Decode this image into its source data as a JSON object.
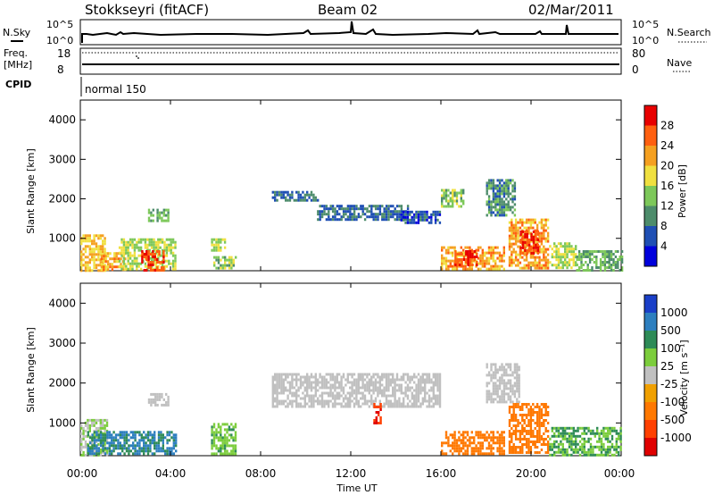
{
  "header": {
    "station": "Stokkseyri (fitACF)",
    "beam": "Beam 02",
    "date": "02/Mar/2011"
  },
  "strip_labels": {
    "nsky": "N.Sky",
    "nsearch": "N.Search",
    "freq_line1": "Freq.",
    "freq_line2": "[MHz]",
    "nave": "Nave",
    "cpid": "CPID",
    "cpid_value": "normal 150"
  },
  "noise_ticks_left": [
    "10^5",
    "10^0"
  ],
  "noise_ticks_right": [
    "10^5",
    "10^0"
  ],
  "freq_ticks": [
    "18",
    "8"
  ],
  "nave_ticks": [
    "80",
    "0"
  ],
  "x_axis": {
    "label": "Time UT",
    "ticks": [
      "00:00",
      "04:00",
      "08:00",
      "12:00",
      "16:00",
      "20:00",
      "00:00"
    ]
  },
  "y_axis": {
    "label": "Slant Range [km]",
    "ticks": [
      "1000",
      "2000",
      "3000",
      "4000"
    ]
  },
  "power_scale": {
    "label": "Power [dB]",
    "ticks": [
      "4",
      "8",
      "12",
      "16",
      "20",
      "24",
      "28"
    ],
    "colors": [
      "#0000dc",
      "#1f4fb4",
      "#4d8c6b",
      "#7dc85a",
      "#f0e040",
      "#f5a020",
      "#ff6010",
      "#e80000"
    ]
  },
  "velocity_scale": {
    "label": "Velocity [m s⁻¹]",
    "ticks": [
      "1000",
      "500",
      "100",
      "25",
      "-25",
      "-100",
      "-500",
      "-1000"
    ],
    "colors": [
      "#1a3fc8",
      "#2d7fbf",
      "#2e8b57",
      "#7ccd3c",
      "#c0c0c0",
      "#f0a000",
      "#ff7800",
      "#ff4000",
      "#e00000"
    ]
  },
  "chart_data": [
    {
      "type": "heatmap",
      "title": "",
      "xlabel": "Time UT",
      "ylabel": "Slant Range [km]",
      "zlabel": "Power [dB]",
      "xlim": [
        0,
        24
      ],
      "ylim": [
        180,
        4500
      ],
      "zlim": [
        0,
        32
      ],
      "regions": [
        {
          "t0": 0.0,
          "t1": 1.1,
          "r0": 200,
          "r1": 1100,
          "level": 20
        },
        {
          "t0": 0.9,
          "t1": 2.0,
          "r0": 200,
          "r1": 650,
          "level": 22
        },
        {
          "t0": 1.7,
          "t1": 4.2,
          "r0": 200,
          "r1": 1000,
          "level": 16
        },
        {
          "t0": 2.7,
          "t1": 3.7,
          "r0": 200,
          "r1": 700,
          "level": 28
        },
        {
          "t0": 3.0,
          "t1": 3.9,
          "r0": 1450,
          "r1": 1750,
          "level": 12
        },
        {
          "t0": 5.8,
          "t1": 6.4,
          "r0": 700,
          "r1": 1000,
          "level": 16
        },
        {
          "t0": 5.9,
          "t1": 6.9,
          "r0": 250,
          "r1": 550,
          "level": 14
        },
        {
          "t0": 8.5,
          "t1": 10.5,
          "r0": 1950,
          "r1": 2200,
          "level": 8
        },
        {
          "t0": 10.5,
          "t1": 14.5,
          "r0": 1500,
          "r1": 1850,
          "level": 8
        },
        {
          "t0": 14.2,
          "t1": 16.0,
          "r0": 1400,
          "r1": 1700,
          "level": 6
        },
        {
          "t0": 16.0,
          "t1": 17.0,
          "r0": 1800,
          "r1": 2250,
          "level": 14
        },
        {
          "t0": 16.0,
          "t1": 18.8,
          "r0": 250,
          "r1": 800,
          "level": 22
        },
        {
          "t0": 16.6,
          "t1": 17.6,
          "r0": 300,
          "r1": 700,
          "level": 28
        },
        {
          "t0": 18.0,
          "t1": 19.3,
          "r0": 1600,
          "r1": 2500,
          "level": 10
        },
        {
          "t0": 19.0,
          "t1": 20.8,
          "r0": 250,
          "r1": 1500,
          "level": 22
        },
        {
          "t0": 19.5,
          "t1": 20.3,
          "r0": 600,
          "r1": 1200,
          "level": 28
        },
        {
          "t0": 20.8,
          "t1": 22.0,
          "r0": 250,
          "r1": 900,
          "level": 16
        },
        {
          "t0": 22.0,
          "t1": 24.0,
          "r0": 200,
          "r1": 700,
          "level": 12
        }
      ]
    },
    {
      "type": "heatmap",
      "title": "",
      "xlabel": "Time UT",
      "ylabel": "Slant Range [km]",
      "zlabel": "Velocity [m s⁻¹]",
      "xlim": [
        0,
        24
      ],
      "ylim": [
        180,
        4500
      ],
      "zlim": [
        -1000,
        1000
      ],
      "regions": [
        {
          "t0": 0.0,
          "t1": 1.2,
          "r0": 200,
          "r1": 1100,
          "level": 25
        },
        {
          "t0": 0.3,
          "t1": 4.2,
          "r0": 200,
          "r1": 800,
          "level": 100
        },
        {
          "t0": 3.0,
          "t1": 3.9,
          "r0": 1450,
          "r1": 1750,
          "level": 0
        },
        {
          "t0": 5.8,
          "t1": 6.9,
          "r0": 250,
          "r1": 1000,
          "level": 50
        },
        {
          "t0": 8.5,
          "t1": 16.0,
          "r0": 1400,
          "r1": 2250,
          "level": 0
        },
        {
          "t0": 13.0,
          "t1": 13.3,
          "r0": 1000,
          "r1": 1500,
          "level": -800
        },
        {
          "t0": 16.0,
          "t1": 18.8,
          "r0": 250,
          "r1": 800,
          "level": -400
        },
        {
          "t0": 18.0,
          "t1": 19.5,
          "r0": 1500,
          "r1": 2500,
          "level": 0
        },
        {
          "t0": 19.0,
          "t1": 20.8,
          "r0": 250,
          "r1": 1500,
          "level": -400
        },
        {
          "t0": 20.8,
          "t1": 24.0,
          "r0": 200,
          "r1": 900,
          "level": 60
        }
      ]
    }
  ]
}
